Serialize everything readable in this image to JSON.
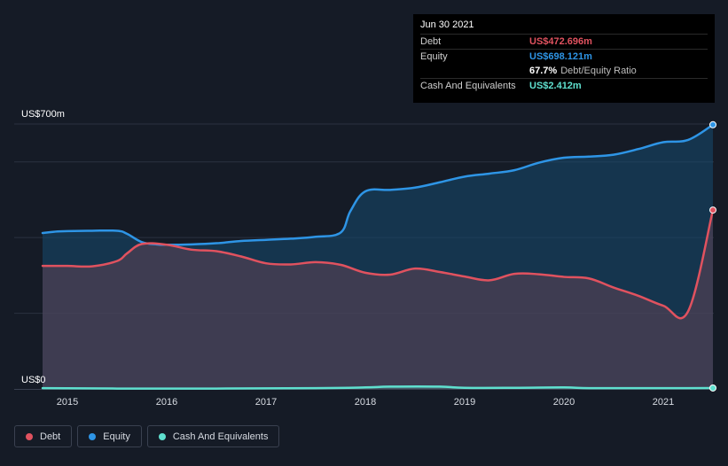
{
  "chart_data": {
    "type": "area",
    "title": "",
    "xlabel": "",
    "ylabel": "",
    "ylim": [
      0,
      700
    ],
    "y_axis": {
      "top_label": "US$700m",
      "bottom_label": "US$0"
    },
    "x_ticks": [
      "2015",
      "2016",
      "2017",
      "2018",
      "2019",
      "2020",
      "2021"
    ],
    "x_range": [
      2014.75,
      2021.5
    ],
    "series": [
      {
        "name": "Equity",
        "color": "#2e95e6",
        "points": [
          [
            2014.75,
            412
          ],
          [
            2014.9,
            416
          ],
          [
            2015.0,
            417
          ],
          [
            2015.25,
            418
          ],
          [
            2015.5,
            418
          ],
          [
            2015.6,
            410
          ],
          [
            2015.75,
            388
          ],
          [
            2015.9,
            382
          ],
          [
            2016.0,
            381
          ],
          [
            2016.25,
            382
          ],
          [
            2016.5,
            385
          ],
          [
            2016.75,
            391
          ],
          [
            2017.0,
            394
          ],
          [
            2017.25,
            397
          ],
          [
            2017.5,
            402
          ],
          [
            2017.75,
            413
          ],
          [
            2017.85,
            470
          ],
          [
            2018.0,
            522
          ],
          [
            2018.25,
            526
          ],
          [
            2018.5,
            532
          ],
          [
            2018.75,
            546
          ],
          [
            2019.0,
            561
          ],
          [
            2019.25,
            569
          ],
          [
            2019.5,
            578
          ],
          [
            2019.75,
            598
          ],
          [
            2020.0,
            611
          ],
          [
            2020.25,
            614
          ],
          [
            2020.5,
            619
          ],
          [
            2020.75,
            634
          ],
          [
            2021.0,
            652
          ],
          [
            2021.25,
            658
          ],
          [
            2021.5,
            698.121
          ]
        ]
      },
      {
        "name": "Debt",
        "color": "#e0525f",
        "points": [
          [
            2014.75,
            325
          ],
          [
            2015.0,
            325
          ],
          [
            2015.25,
            324
          ],
          [
            2015.5,
            338
          ],
          [
            2015.6,
            358
          ],
          [
            2015.75,
            383
          ],
          [
            2016.0,
            381
          ],
          [
            2016.25,
            368
          ],
          [
            2016.5,
            364
          ],
          [
            2016.75,
            350
          ],
          [
            2017.0,
            332
          ],
          [
            2017.25,
            329
          ],
          [
            2017.5,
            335
          ],
          [
            2017.75,
            328
          ],
          [
            2018.0,
            307
          ],
          [
            2018.25,
            302
          ],
          [
            2018.5,
            318
          ],
          [
            2018.75,
            309
          ],
          [
            2019.0,
            297
          ],
          [
            2019.25,
            287
          ],
          [
            2019.5,
            304
          ],
          [
            2019.75,
            303
          ],
          [
            2020.0,
            296
          ],
          [
            2020.25,
            292
          ],
          [
            2020.5,
            268
          ],
          [
            2020.75,
            246
          ],
          [
            2021.0,
            220
          ],
          [
            2021.25,
            205
          ],
          [
            2021.5,
            472.696
          ]
        ]
      },
      {
        "name": "Cash And Equivalents",
        "color": "#5fe0cf",
        "points": [
          [
            2014.75,
            2
          ],
          [
            2015.5,
            1
          ],
          [
            2016.5,
            1
          ],
          [
            2017.5,
            2
          ],
          [
            2018.0,
            4
          ],
          [
            2018.25,
            6
          ],
          [
            2018.75,
            6
          ],
          [
            2019.0,
            3
          ],
          [
            2019.5,
            3
          ],
          [
            2020.0,
            4
          ],
          [
            2020.25,
            2
          ],
          [
            2020.75,
            2
          ],
          [
            2021.25,
            2
          ],
          [
            2021.5,
            2.412
          ]
        ]
      }
    ],
    "tooltip": {
      "date": "Jun 30 2021",
      "rows": [
        {
          "label": "Debt",
          "value": "US$472.696m",
          "color": "#e0525f"
        },
        {
          "label": "Equity",
          "value": "US$698.121m",
          "color": "#2e95e6"
        },
        {
          "label": "",
          "value": "67.7%",
          "extra": "Debt/Equity Ratio",
          "color": "#ffffff"
        },
        {
          "label": "Cash And Equivalents",
          "value": "US$2.412m",
          "color": "#5fe0cf"
        }
      ]
    }
  },
  "legend": [
    {
      "label": "Debt",
      "color": "#e0525f"
    },
    {
      "label": "Equity",
      "color": "#2e95e6"
    },
    {
      "label": "Cash And Equivalents",
      "color": "#5fe0cf"
    }
  ]
}
